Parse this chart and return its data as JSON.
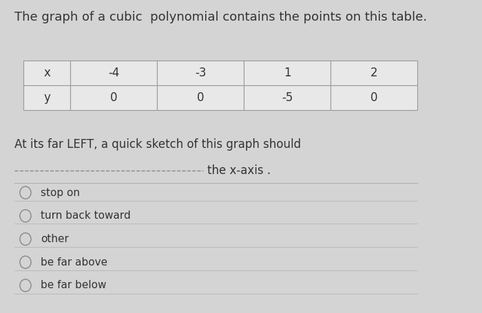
{
  "title": "The graph of a cubic  polynomial contains the points on this table.",
  "title_fontsize": 13,
  "background_color": "#d4d4d4",
  "panel_color": "#e8e8e8",
  "table_x_labels": [
    "x",
    "-4",
    "-3",
    "1",
    "2"
  ],
  "table_y_labels": [
    "y",
    "0",
    "0",
    "-5",
    "0"
  ],
  "question_text": "At its far LEFT, a quick sketch of this graph should",
  "dashed_line_text": "the x-axis .",
  "options": [
    "stop on",
    "turn back toward",
    "other",
    "be far above",
    "be far below"
  ],
  "option_fontsize": 11,
  "question_fontsize": 12,
  "separator_color": "#b0b0b0",
  "text_color": "#333333",
  "circle_color": "#888888",
  "table_edge_color": "#999999",
  "table_face_color": "#e8e8e8"
}
